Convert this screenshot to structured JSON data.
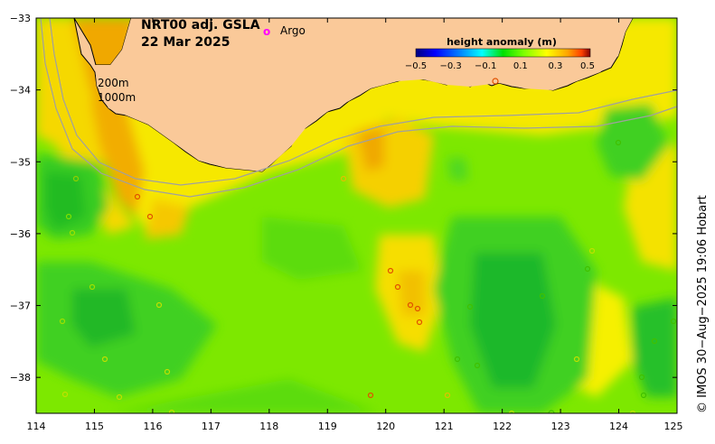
{
  "title": {
    "product": "NRT00 adj. GSLA",
    "date": "22 Mar 2025"
  },
  "legend": {
    "argo_symbol": "o",
    "argo_label": "Argo"
  },
  "colorbar": {
    "title": "height anomaly (m)",
    "ticks": [
      "−0.5",
      "−0.3",
      "−0.1",
      "0.1",
      "0.3",
      "0.5"
    ],
    "vmin": -0.5,
    "vmax": 0.5,
    "colors": [
      "#00007f",
      "#0000ff",
      "#007fff",
      "#00ffff",
      "#00e000",
      "#7fff00",
      "#ffff00",
      "#ffa500",
      "#ff4000",
      "#7f0000"
    ]
  },
  "isobaths": {
    "shallow": "200m",
    "deep": "1000m"
  },
  "axes": {
    "lon_ticks": [
      "114",
      "115",
      "116",
      "117",
      "118",
      "119",
      "120",
      "121",
      "122",
      "123",
      "124",
      "125"
    ],
    "lat_ticks": [
      "−33",
      "−34",
      "−35",
      "−36",
      "−37",
      "−38"
    ],
    "lon_range": [
      114,
      125
    ],
    "lat_range": [
      -38.5,
      -33
    ]
  },
  "credit": "© IMOS 30−Aug−2025 19:06 Hobart",
  "colors": {
    "land": "#fac999",
    "field_base": "#88ee00",
    "positive": "#ffd000",
    "strong_positive": "#f0a000",
    "negative": "#22cc22",
    "strong_negative": "#00b030",
    "argo_marker": "#ff00ff",
    "isobath": "#a0a0a0"
  }
}
